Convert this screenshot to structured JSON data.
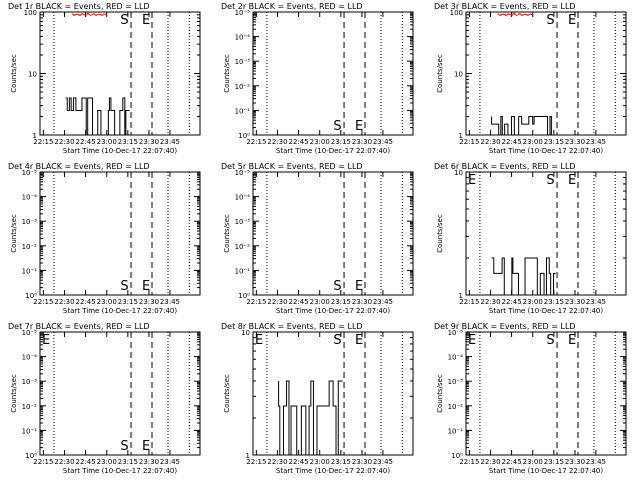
{
  "chart_data": [
    {
      "type": "line",
      "title": "Det 1r BLACK = Events, RED = LLD",
      "xlabel": "Start Time (10-Dec-17 22:07:40)",
      "ylabel": "Counts/sec",
      "yscale": "log",
      "ytick_labels": [
        "1",
        "10",
        "100"
      ],
      "xtick_labels": [
        "22:15",
        "22:30",
        "22:45",
        "23:00",
        "23:15",
        "23:30",
        "23:45"
      ],
      "markers": [
        "S",
        "E"
      ],
      "events_band": [
        1,
        4
      ],
      "lld": true
    },
    {
      "type": "line",
      "title": "Det 2r BLACK = Events, RED = LLD",
      "xlabel": "Start Time (10-Dec-17 22:07:40)",
      "ylabel": "Counts/sec",
      "yscale": "log",
      "ytick_labels": [
        "10⁰",
        "10⁻¹",
        "10⁻²",
        "10⁻³",
        "10⁻⁴",
        "10⁻⁵"
      ],
      "xtick_labels": [
        "22:15",
        "22:30",
        "22:45",
        "23:00",
        "23:15",
        "23:30",
        "23:45"
      ],
      "markers": [
        "S",
        "E"
      ],
      "events_band": null,
      "lld": false
    },
    {
      "type": "line",
      "title": "Det 3r BLACK = Events, RED = LLD",
      "xlabel": "Start Time (10-Dec-17 22:07:40)",
      "ylabel": "Counts/sec",
      "yscale": "log",
      "ytick_labels": [
        "1",
        "10",
        "100"
      ],
      "xtick_labels": [
        "22:15",
        "22:30",
        "22:45",
        "23:00",
        "23:15",
        "23:30",
        "23:45"
      ],
      "markers": [
        "S",
        "E"
      ],
      "events_band": [
        1,
        2
      ],
      "lld": true
    },
    {
      "type": "line",
      "title": "Det 4r BLACK = Events, RED = LLD",
      "xlabel": "Start Time (10-Dec-17 22:07:40)",
      "ylabel": "Counts/sec",
      "yscale": "log",
      "ytick_labels": [
        "10⁰",
        "10⁻¹",
        "10⁻²",
        "10⁻³",
        "10⁻⁴",
        "10⁻⁵"
      ],
      "xtick_labels": [
        "22:15",
        "22:30",
        "22:45",
        "23:00",
        "23:15",
        "23:30",
        "23:45"
      ],
      "markers": [
        "S",
        "E"
      ],
      "events_band": null,
      "lld": false
    },
    {
      "type": "line",
      "title": "Det 5r BLACK = Events, RED = LLD",
      "xlabel": "Start Time (10-Dec-17 22:07:40)",
      "ylabel": "Counts/sec",
      "yscale": "log",
      "ytick_labels": [
        "10⁰",
        "10⁻¹",
        "10⁻²",
        "10⁻³",
        "10⁻⁴",
        "10⁻⁵"
      ],
      "xtick_labels": [
        "22:15",
        "22:30",
        "22:45",
        "23:00",
        "23:15",
        "23:30",
        "23:45"
      ],
      "markers": [
        "S",
        "E"
      ],
      "events_band": null,
      "lld": false
    },
    {
      "type": "line",
      "title": "Det 6r BLACK = Events, RED = LLD",
      "xlabel": "Start Time (10-Dec-17 22:07:40)",
      "ylabel": "Counts/sec",
      "yscale": "log",
      "ytick_labels": [
        "1",
        "10"
      ],
      "xtick_labels": [
        "22:15",
        "22:30",
        "22:45",
        "23:00",
        "23:15",
        "23:30",
        "23:45"
      ],
      "markers": [
        "E",
        "S",
        "E"
      ],
      "events_band": [
        1,
        2
      ],
      "lld": false
    },
    {
      "type": "line",
      "title": "Det 7r BLACK = Events, RED = LLD",
      "xlabel": "Start Time (10-Dec-17 22:07:40)",
      "ylabel": "Counts/sec",
      "yscale": "log",
      "ytick_labels": [
        "10⁰",
        "10⁻¹",
        "10⁻²",
        "10⁻³",
        "10⁻⁴",
        "10⁻⁵"
      ],
      "xtick_labels": [
        "22:15",
        "22:30",
        "22:45",
        "23:00",
        "23:15",
        "23:30",
        "23:45"
      ],
      "markers": [
        "E",
        "S",
        "E"
      ],
      "events_band": null,
      "lld": false
    },
    {
      "type": "line",
      "title": "Det 8r BLACK = Events, RED = LLD",
      "xlabel": "Start Time (10-Dec-17 22:07:40)",
      "ylabel": "Counts/sec",
      "yscale": "log",
      "ytick_labels": [
        "1",
        "10"
      ],
      "xtick_labels": [
        "22:15",
        "22:30",
        "22:45",
        "23:00",
        "23:15",
        "23:30",
        "23:45"
      ],
      "markers": [
        "E",
        "S",
        "E"
      ],
      "events_band": [
        1,
        4
      ],
      "lld": false
    },
    {
      "type": "line",
      "title": "Det 9r BLACK = Events, RED = LLD",
      "xlabel": "Start Time (10-Dec-17 22:07:40)",
      "ylabel": "Counts/sec",
      "yscale": "log",
      "ytick_labels": [
        "10⁰",
        "10⁻¹",
        "10⁻²",
        "10⁻³",
        "10⁻⁴",
        "10⁻⁵"
      ],
      "xtick_labels": [
        "22:15",
        "22:30",
        "22:45",
        "23:00",
        "23:15",
        "23:30",
        "23:45"
      ],
      "markers": [
        "E",
        "S",
        "E"
      ],
      "events_band": null,
      "lld": false
    }
  ],
  "colors": {
    "events": "#000000",
    "lld": "#ff0000",
    "frame": "#000000"
  }
}
